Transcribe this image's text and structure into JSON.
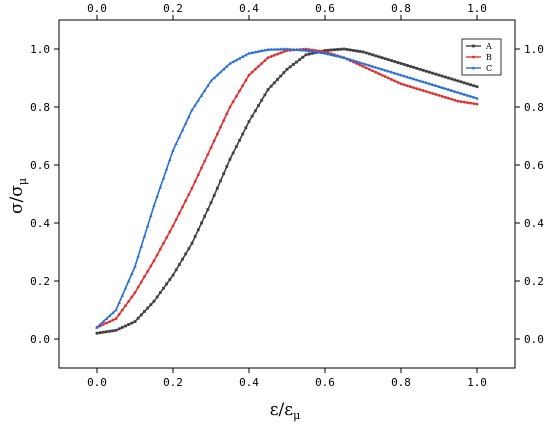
{
  "chart_data": {
    "type": "line",
    "title": "",
    "xlabel": "ε/ε",
    "xlabel_sub": "μ",
    "ylabel": "σ/σ",
    "ylabel_sub": "μ",
    "xlim": [
      -0.1,
      1.1
    ],
    "ylim": [
      -0.1,
      1.1
    ],
    "xticks": [
      0.0,
      0.2,
      0.4,
      0.6,
      0.8,
      1.0
    ],
    "yticks": [
      0.0,
      0.2,
      0.4,
      0.6,
      0.8,
      1.0
    ],
    "xtick_labels": [
      "0.0",
      "0.2",
      "0.4",
      "0.6",
      "0.8",
      "1.0"
    ],
    "ytick_labels": [
      "0.0",
      "0.2",
      "0.4",
      "0.6",
      "0.8",
      "1.0"
    ],
    "grid": false,
    "mirror_axes": true,
    "legend_position": "top-right",
    "series": [
      {
        "name": "A",
        "color": "#404040",
        "marker": "square",
        "x": [
          0.0,
          0.05,
          0.1,
          0.15,
          0.2,
          0.25,
          0.3,
          0.35,
          0.4,
          0.45,
          0.5,
          0.55,
          0.6,
          0.65,
          0.7,
          0.75,
          0.8,
          0.85,
          0.9,
          0.95,
          1.0
        ],
        "y": [
          0.02,
          0.03,
          0.06,
          0.13,
          0.22,
          0.33,
          0.47,
          0.62,
          0.75,
          0.86,
          0.93,
          0.98,
          0.995,
          1.0,
          0.99,
          0.97,
          0.95,
          0.93,
          0.91,
          0.89,
          0.87
        ]
      },
      {
        "name": "B",
        "color": "#e03030",
        "marker": "circle",
        "x": [
          0.0,
          0.05,
          0.1,
          0.15,
          0.2,
          0.25,
          0.3,
          0.35,
          0.4,
          0.45,
          0.5,
          0.55,
          0.6,
          0.65,
          0.7,
          0.75,
          0.8,
          0.85,
          0.9,
          0.95,
          1.0
        ],
        "y": [
          0.04,
          0.07,
          0.16,
          0.27,
          0.39,
          0.52,
          0.66,
          0.8,
          0.91,
          0.97,
          0.995,
          1.0,
          0.99,
          0.97,
          0.94,
          0.91,
          0.88,
          0.86,
          0.84,
          0.82,
          0.81
        ]
      },
      {
        "name": "C",
        "color": "#2a6fd6",
        "marker": "triangle",
        "x": [
          0.0,
          0.05,
          0.1,
          0.15,
          0.2,
          0.25,
          0.3,
          0.35,
          0.4,
          0.45,
          0.5,
          0.55,
          0.6,
          0.65,
          0.7,
          0.75,
          0.8,
          0.85,
          0.9,
          0.95,
          1.0
        ],
        "y": [
          0.04,
          0.1,
          0.25,
          0.46,
          0.65,
          0.79,
          0.89,
          0.95,
          0.985,
          0.998,
          1.0,
          0.995,
          0.985,
          0.97,
          0.95,
          0.93,
          0.91,
          0.89,
          0.87,
          0.85,
          0.83
        ]
      }
    ]
  }
}
